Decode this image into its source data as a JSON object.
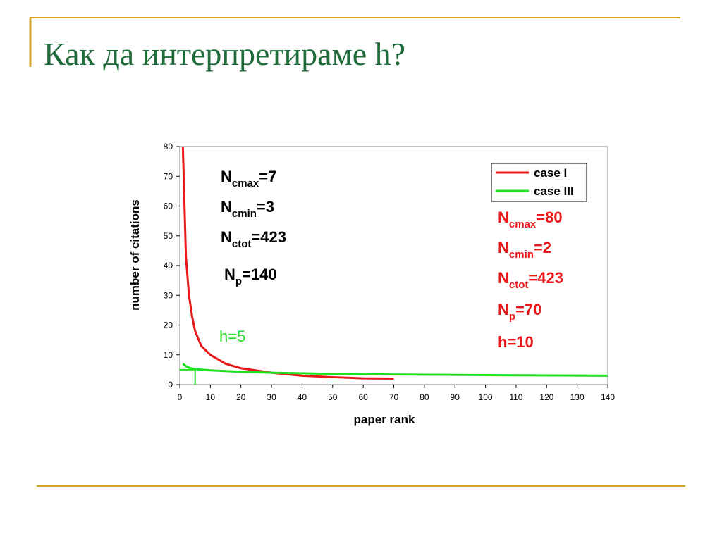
{
  "title": "Как да интерпретираме h?",
  "chart_data": {
    "type": "line",
    "xlabel": "paper rank",
    "ylabel": "number of citations",
    "xlim": [
      0,
      140
    ],
    "xticks": [
      0,
      10,
      20,
      30,
      40,
      50,
      60,
      70,
      80,
      90,
      100,
      110,
      120,
      130,
      140
    ],
    "ylim": [
      0,
      80
    ],
    "yticks": [
      0,
      10,
      20,
      30,
      40,
      50,
      60,
      70,
      80
    ],
    "grid": false,
    "legend": "upper right",
    "series": [
      {
        "name": "case I",
        "color": "#e8181b",
        "x": [
          1,
          2,
          3,
          4,
          5,
          7,
          10,
          15,
          20,
          30,
          40,
          50,
          60,
          70
        ],
        "values": [
          80,
          43,
          30,
          23,
          18,
          13,
          10,
          7,
          5.5,
          4,
          3,
          2.5,
          2.1,
          2
        ]
      },
      {
        "name": "case III",
        "color": "#22e022",
        "x": [
          1,
          2,
          3,
          5,
          10,
          20,
          30,
          50,
          70,
          100,
          140
        ],
        "values": [
          7,
          6.2,
          5.7,
          5.2,
          4.8,
          4.3,
          4,
          3.6,
          3.4,
          3.2,
          3
        ]
      }
    ],
    "guide": {
      "x": 5,
      "y": 5,
      "color": "#22e022"
    },
    "annotations": [
      {
        "color": "#000000",
        "parts": [
          "N",
          "cmax",
          "=7"
        ]
      },
      {
        "color": "#000000",
        "parts": [
          "N",
          "cmin",
          "=3"
        ]
      },
      {
        "color": "#000000",
        "parts": [
          "N",
          "ctot",
          "=423"
        ]
      },
      {
        "color": "#000000",
        "parts": [
          "N",
          "p",
          "=140"
        ]
      },
      {
        "color": "#22e022",
        "parts": [
          "h=5"
        ]
      },
      {
        "color": "#e8181b",
        "parts": [
          "N",
          "cmax",
          "=80"
        ]
      },
      {
        "color": "#e8181b",
        "parts": [
          "N",
          "cmin",
          "=2"
        ]
      },
      {
        "color": "#e8181b",
        "parts": [
          "N",
          "ctot",
          "=423"
        ]
      },
      {
        "color": "#e8181b",
        "parts": [
          "N",
          "p",
          "=70"
        ]
      },
      {
        "color": "#e8181b",
        "parts": [
          "h=10"
        ]
      }
    ]
  }
}
